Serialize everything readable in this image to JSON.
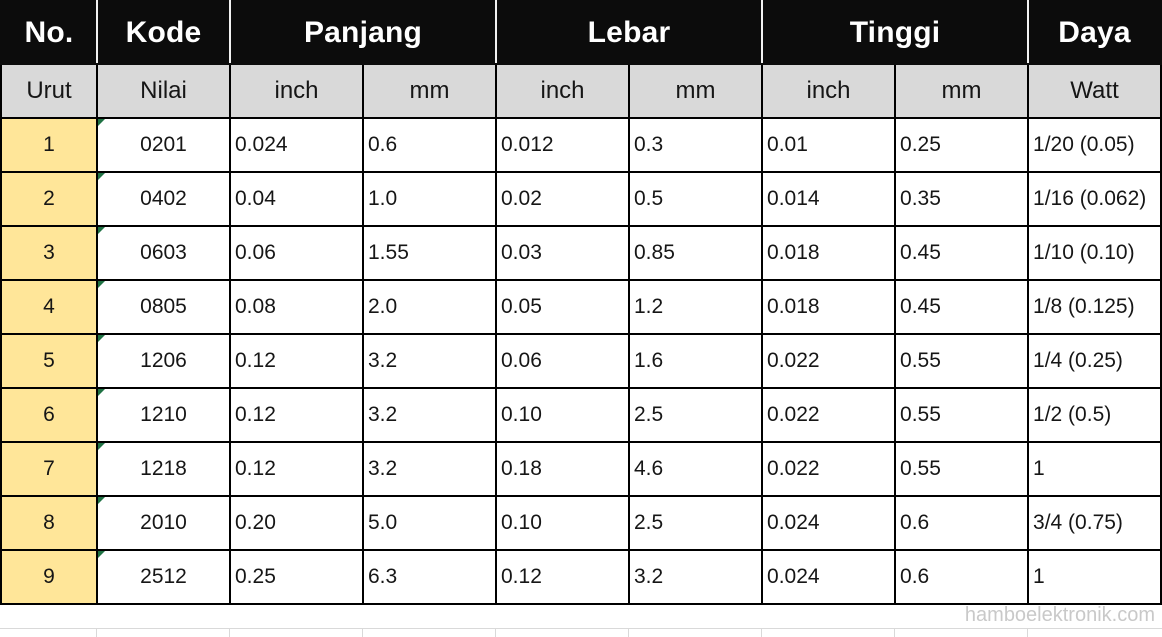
{
  "table": {
    "header_row1": [
      {
        "label": "No."
      },
      {
        "label": "Kode"
      },
      {
        "label": "Panjang"
      },
      {
        "label": "Lebar"
      },
      {
        "label": "Tinggi"
      },
      {
        "label": "Daya"
      }
    ],
    "header_row2": [
      "Urut",
      "Nilai",
      "inch",
      "mm",
      "inch",
      "mm",
      "inch",
      "mm",
      "Watt"
    ],
    "rows": [
      [
        "1",
        "0201",
        "0.024",
        "0.6",
        "0.012",
        "0.3",
        "0.01",
        "0.25",
        "1/20 (0.05)"
      ],
      [
        "2",
        "0402",
        "0.04",
        "1.0",
        "0.02",
        "0.5",
        "0.014",
        "0.35",
        "1/16 (0.062)"
      ],
      [
        "3",
        "0603",
        "0.06",
        "1.55",
        "0.03",
        "0.85",
        "0.018",
        "0.45",
        "1/10 (0.10)"
      ],
      [
        "4",
        "0805",
        "0.08",
        "2.0",
        "0.05",
        "1.2",
        "0.018",
        "0.45",
        "1/8 (0.125)"
      ],
      [
        "5",
        "1206",
        "0.12",
        "3.2",
        "0.06",
        "1.6",
        "0.022",
        "0.55",
        "1/4 (0.25)"
      ],
      [
        "6",
        "1210",
        "0.12",
        "3.2",
        "0.10",
        "2.5",
        "0.022",
        "0.55",
        "1/2 (0.5)"
      ],
      [
        "7",
        "1218",
        "0.12",
        "3.2",
        "0.18",
        "4.6",
        "0.022",
        "0.55",
        "1"
      ],
      [
        "8",
        "2010",
        "0.20",
        "5.0",
        "0.10",
        "2.5",
        "0.024",
        "0.6",
        "3/4 (0.75)"
      ],
      [
        "9",
        "2512",
        "0.25",
        "6.3",
        "0.12",
        "3.2",
        "0.024",
        "0.6",
        "1"
      ]
    ]
  },
  "icons": {
    "kode_cell_indicator": "green-triangle-number-stored-as-text"
  },
  "watermark": "hamboelektronik.com",
  "colors": {
    "header_bg": "#0c0c0c",
    "header_text": "#ffffff",
    "header_separator": "#f2f2f2",
    "subheader_bg": "#d9d9d9",
    "row_index_bg": "#ffe699",
    "grid_border": "#000000",
    "indicator_green": "#1f7244",
    "watermark_text": "#c9c9c9",
    "faint_gridline": "#d9d9d9"
  }
}
